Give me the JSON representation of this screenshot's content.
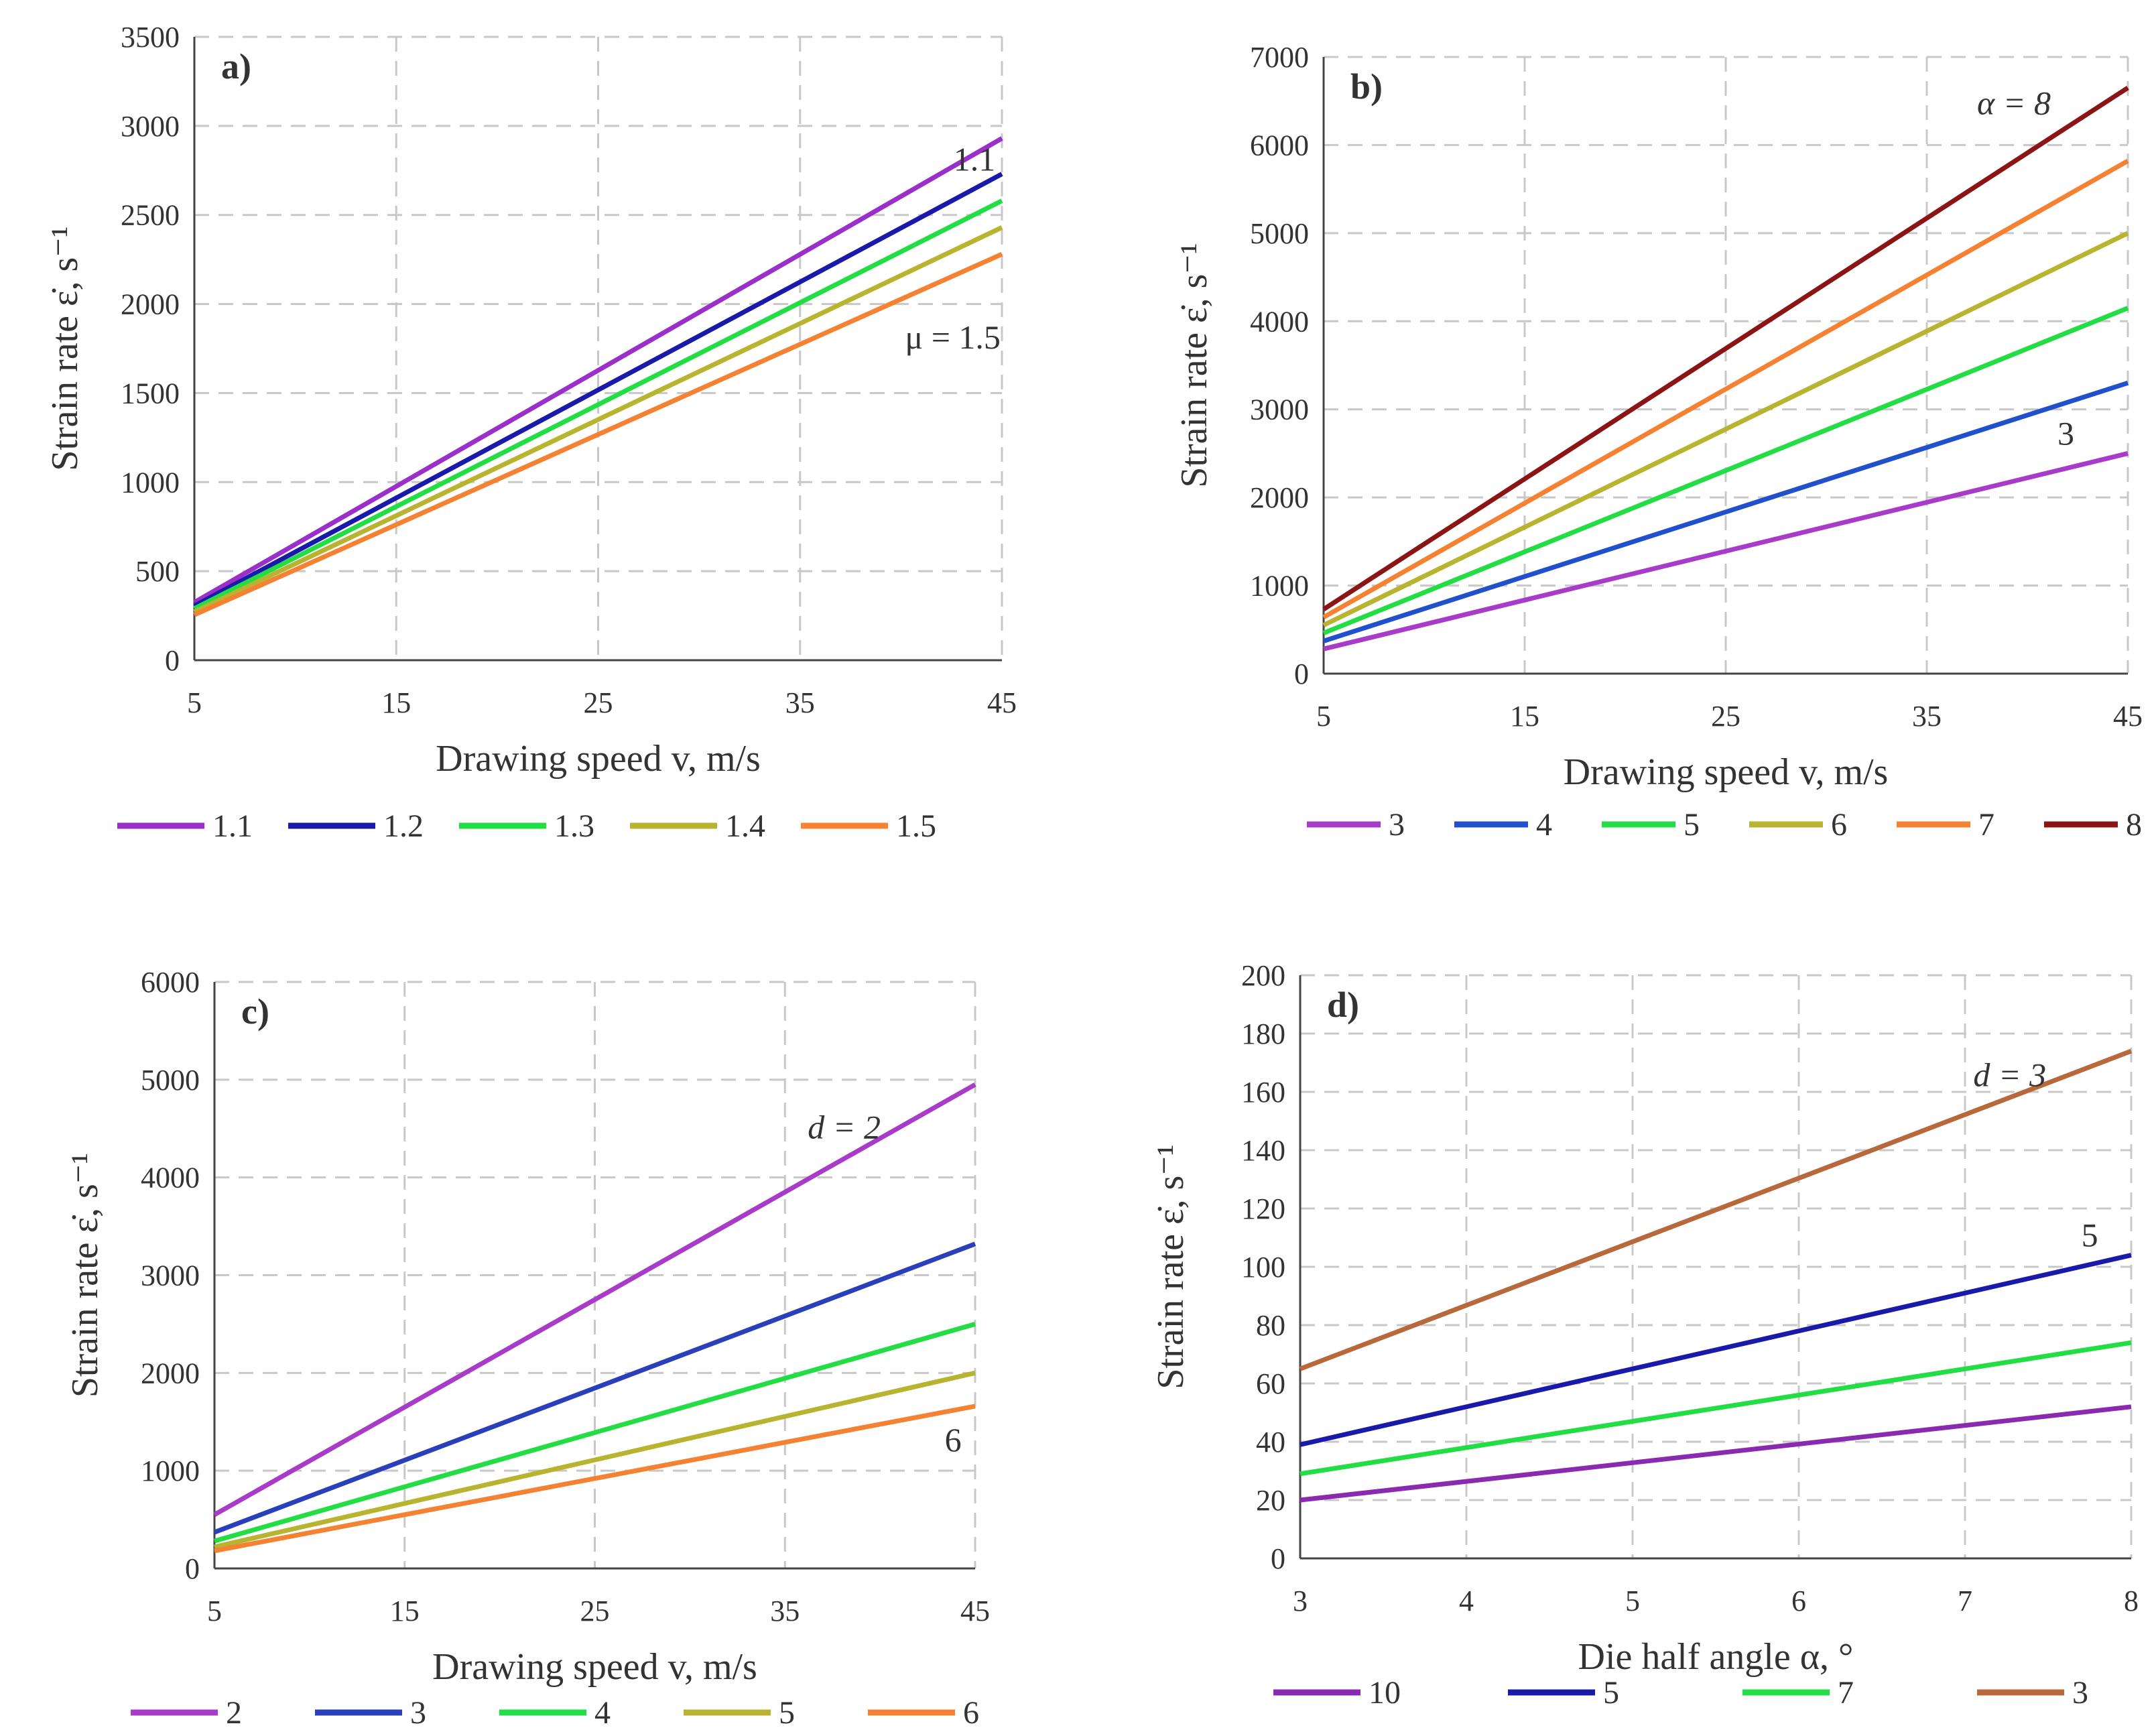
{
  "chart_data": [
    {
      "type": "line",
      "panel_label": "a)",
      "xlabel": "Drawing speed v, m/s",
      "ylabel": "Strain rate ε̇, s⁻¹",
      "xlim": [
        5,
        45
      ],
      "ylim": [
        0,
        3500
      ],
      "xticks": [
        5,
        15,
        25,
        35,
        45
      ],
      "yticks": [
        0,
        500,
        1000,
        1500,
        2000,
        2500,
        3000,
        3500
      ],
      "x": [
        5,
        45
      ],
      "series": [
        {
          "name": "1.1",
          "color": "#9b2fc9",
          "values": [
            325,
            2930
          ]
        },
        {
          "name": "1.2",
          "color": "#1a1aaa",
          "values": [
            305,
            2730
          ]
        },
        {
          "name": "1.3",
          "color": "#22dd44",
          "values": [
            290,
            2580
          ]
        },
        {
          "name": "1.4",
          "color": "#b8b430",
          "values": [
            272,
            2430
          ]
        },
        {
          "name": "1.5",
          "color": "#f58233",
          "values": [
            255,
            2280
          ]
        }
      ],
      "annotations": [
        {
          "text": "1.1",
          "x": 42.6,
          "y": 2750
        },
        {
          "text": "μ = 1.5",
          "x": 40.2,
          "y": 1750
        }
      ]
    },
    {
      "type": "line",
      "panel_label": "b)",
      "xlabel": "Drawing speed v, m/s",
      "ylabel": "Strain rate ε̇, s⁻¹",
      "xlim": [
        5,
        45
      ],
      "ylim": [
        0,
        7000
      ],
      "xticks": [
        5,
        15,
        25,
        35,
        45
      ],
      "yticks": [
        0,
        1000,
        2000,
        3000,
        4000,
        5000,
        6000,
        7000
      ],
      "x": [
        5,
        45
      ],
      "series": [
        {
          "name": "3",
          "color": "#a83cc8",
          "values": [
            280,
            2500
          ]
        },
        {
          "name": "4",
          "color": "#2050cc",
          "values": [
            370,
            3300
          ]
        },
        {
          "name": "5",
          "color": "#22dd44",
          "values": [
            460,
            4150
          ]
        },
        {
          "name": "6",
          "color": "#b8b430",
          "values": [
            550,
            5000
          ]
        },
        {
          "name": "7",
          "color": "#f58233",
          "values": [
            640,
            5820
          ]
        },
        {
          "name": "8",
          "color": "#8b1414",
          "values": [
            730,
            6650
          ]
        }
      ],
      "annotations": [
        {
          "text": "α = 8",
          "x": 37.5,
          "y": 6350
        },
        {
          "text": "3",
          "x": 41.5,
          "y": 2600
        }
      ]
    },
    {
      "type": "line",
      "panel_label": "c)",
      "xlabel": "Drawing speed v, m/s",
      "ylabel": "Strain rate ε̇, s⁻¹",
      "xlim": [
        5,
        45
      ],
      "ylim": [
        0,
        6000
      ],
      "xticks": [
        5,
        15,
        25,
        35,
        45
      ],
      "yticks": [
        0,
        1000,
        2000,
        3000,
        4000,
        5000,
        6000
      ],
      "x": [
        5,
        45
      ],
      "series": [
        {
          "name": "2",
          "color": "#a83cc8",
          "values": [
            550,
            4950
          ]
        },
        {
          "name": "3",
          "color": "#2a40bb",
          "values": [
            370,
            3320
          ]
        },
        {
          "name": "4",
          "color": "#22dd44",
          "values": [
            280,
            2500
          ]
        },
        {
          "name": "5",
          "color": "#b8b430",
          "values": [
            220,
            2000
          ]
        },
        {
          "name": "6",
          "color": "#f58233",
          "values": [
            180,
            1660
          ]
        }
      ],
      "annotations": [
        {
          "text": "d = 2",
          "x": 36.2,
          "y": 4400
        },
        {
          "text": "6",
          "x": 43.4,
          "y": 1200
        }
      ]
    },
    {
      "type": "line",
      "panel_label": "d)",
      "xlabel": "Die half angle α, °",
      "ylabel": "Strain rate ε̇, s⁻¹",
      "xlim": [
        3,
        8
      ],
      "ylim": [
        0,
        200
      ],
      "xticks": [
        3,
        4,
        5,
        6,
        7,
        8
      ],
      "yticks": [
        0,
        20,
        40,
        60,
        80,
        100,
        120,
        140,
        160,
        180,
        200
      ],
      "x": [
        3,
        8
      ],
      "series": [
        {
          "name": "10",
          "color": "#8a2ab0",
          "values": [
            20,
            52
          ]
        },
        {
          "name": "5",
          "color": "#1a1aaa",
          "values": [
            39,
            104
          ]
        },
        {
          "name": "7",
          "color": "#22dd44",
          "values": [
            29,
            74
          ]
        },
        {
          "name": "3",
          "color": "#b8683a",
          "values": [
            65,
            174
          ]
        }
      ],
      "annotations": [
        {
          "text": "d = 3",
          "x": 7.05,
          "y": 162
        },
        {
          "text": "5",
          "x": 7.7,
          "y": 107
        }
      ]
    }
  ]
}
